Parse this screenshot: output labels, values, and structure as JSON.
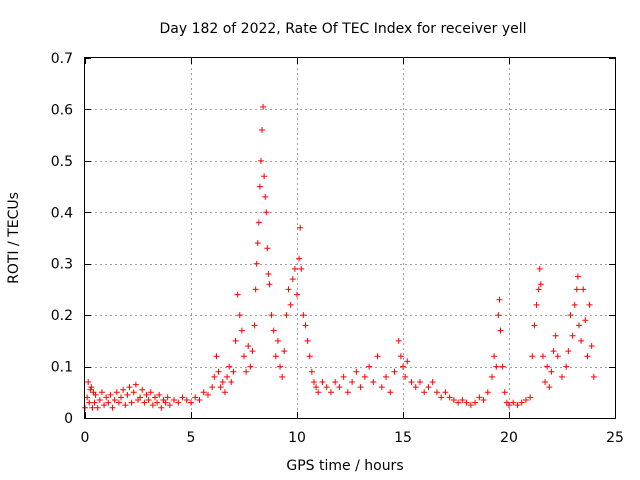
{
  "chart_data": {
    "type": "scatter",
    "title": "Day 182 of 2022, Rate Of TEC Index for receiver yell",
    "xlabel": "GPS time / hours",
    "ylabel": "ROTI / TECUs",
    "xlim": [
      0,
      25
    ],
    "ylim": [
      0,
      0.7
    ],
    "xticks": [
      0,
      5,
      10,
      15,
      20,
      25
    ],
    "xtick_labels": [
      "0",
      "5",
      "10",
      "15",
      "20",
      "25"
    ],
    "yticks": [
      0,
      0.1,
      0.2,
      0.3,
      0.4,
      0.5,
      0.6,
      0.7
    ],
    "ytick_labels": [
      "0",
      "0.1",
      "0.2",
      "0.3",
      "0.4",
      "0.5",
      "0.6",
      "0.7"
    ],
    "grid": true,
    "marker": "plus",
    "color": "#ff0000",
    "series": [
      {
        "name": "ROTI",
        "points": [
          [
            0.0,
            0.02
          ],
          [
            0.1,
            0.04
          ],
          [
            0.15,
            0.07
          ],
          [
            0.2,
            0.03
          ],
          [
            0.25,
            0.055
          ],
          [
            0.3,
            0.06
          ],
          [
            0.35,
            0.02
          ],
          [
            0.4,
            0.05
          ],
          [
            0.45,
            0.03
          ],
          [
            0.5,
            0.045
          ],
          [
            0.6,
            0.02
          ],
          [
            0.7,
            0.035
          ],
          [
            0.8,
            0.05
          ],
          [
            0.9,
            0.025
          ],
          [
            1.0,
            0.04
          ],
          [
            1.1,
            0.03
          ],
          [
            1.2,
            0.045
          ],
          [
            1.3,
            0.02
          ],
          [
            1.4,
            0.035
          ],
          [
            1.5,
            0.05
          ],
          [
            1.6,
            0.03
          ],
          [
            1.7,
            0.04
          ],
          [
            1.8,
            0.055
          ],
          [
            1.9,
            0.025
          ],
          [
            2.0,
            0.045
          ],
          [
            2.1,
            0.06
          ],
          [
            2.2,
            0.03
          ],
          [
            2.3,
            0.05
          ],
          [
            2.4,
            0.065
          ],
          [
            2.5,
            0.035
          ],
          [
            2.6,
            0.04
          ],
          [
            2.7,
            0.055
          ],
          [
            2.8,
            0.03
          ],
          [
            2.9,
            0.045
          ],
          [
            3.0,
            0.035
          ],
          [
            3.1,
            0.05
          ],
          [
            3.2,
            0.025
          ],
          [
            3.3,
            0.04
          ],
          [
            3.4,
            0.03
          ],
          [
            3.5,
            0.045
          ],
          [
            3.6,
            0.02
          ],
          [
            3.7,
            0.035
          ],
          [
            3.8,
            0.03
          ],
          [
            3.9,
            0.04
          ],
          [
            4.0,
            0.025
          ],
          [
            4.2,
            0.035
          ],
          [
            4.4,
            0.03
          ],
          [
            4.6,
            0.04
          ],
          [
            4.8,
            0.035
          ],
          [
            5.0,
            0.03
          ],
          [
            5.2,
            0.04
          ],
          [
            5.4,
            0.035
          ],
          [
            5.6,
            0.05
          ],
          [
            5.8,
            0.045
          ],
          [
            6.0,
            0.06
          ],
          [
            6.1,
            0.08
          ],
          [
            6.2,
            0.12
          ],
          [
            6.3,
            0.09
          ],
          [
            6.4,
            0.06
          ],
          [
            6.5,
            0.07
          ],
          [
            6.6,
            0.05
          ],
          [
            6.7,
            0.08
          ],
          [
            6.8,
            0.1
          ],
          [
            6.9,
            0.07
          ],
          [
            7.0,
            0.09
          ],
          [
            7.1,
            0.15
          ],
          [
            7.2,
            0.24
          ],
          [
            7.3,
            0.2
          ],
          [
            7.4,
            0.17
          ],
          [
            7.5,
            0.12
          ],
          [
            7.6,
            0.09
          ],
          [
            7.7,
            0.14
          ],
          [
            7.8,
            0.1
          ],
          [
            7.9,
            0.13
          ],
          [
            8.0,
            0.18
          ],
          [
            8.05,
            0.25
          ],
          [
            8.1,
            0.3
          ],
          [
            8.15,
            0.34
          ],
          [
            8.2,
            0.38
          ],
          [
            8.25,
            0.45
          ],
          [
            8.3,
            0.5
          ],
          [
            8.35,
            0.56
          ],
          [
            8.4,
            0.605
          ],
          [
            8.45,
            0.47
          ],
          [
            8.5,
            0.43
          ],
          [
            8.55,
            0.4
          ],
          [
            8.6,
            0.33
          ],
          [
            8.65,
            0.28
          ],
          [
            8.7,
            0.26
          ],
          [
            8.8,
            0.2
          ],
          [
            8.9,
            0.17
          ],
          [
            9.0,
            0.12
          ],
          [
            9.1,
            0.15
          ],
          [
            9.2,
            0.1
          ],
          [
            9.3,
            0.08
          ],
          [
            9.4,
            0.13
          ],
          [
            9.5,
            0.2
          ],
          [
            9.6,
            0.25
          ],
          [
            9.7,
            0.22
          ],
          [
            9.8,
            0.27
          ],
          [
            9.9,
            0.29
          ],
          [
            10.0,
            0.24
          ],
          [
            10.1,
            0.31
          ],
          [
            10.15,
            0.37
          ],
          [
            10.2,
            0.29
          ],
          [
            10.3,
            0.2
          ],
          [
            10.4,
            0.18
          ],
          [
            10.5,
            0.15
          ],
          [
            10.6,
            0.12
          ],
          [
            10.7,
            0.09
          ],
          [
            10.8,
            0.07
          ],
          [
            10.9,
            0.06
          ],
          [
            11.0,
            0.05
          ],
          [
            11.2,
            0.07
          ],
          [
            11.4,
            0.06
          ],
          [
            11.6,
            0.05
          ],
          [
            11.8,
            0.07
          ],
          [
            12.0,
            0.06
          ],
          [
            12.2,
            0.08
          ],
          [
            12.4,
            0.05
          ],
          [
            12.6,
            0.07
          ],
          [
            12.8,
            0.09
          ],
          [
            13.0,
            0.06
          ],
          [
            13.2,
            0.08
          ],
          [
            13.4,
            0.1
          ],
          [
            13.6,
            0.07
          ],
          [
            13.8,
            0.12
          ],
          [
            14.0,
            0.06
          ],
          [
            14.2,
            0.08
          ],
          [
            14.4,
            0.05
          ],
          [
            14.6,
            0.09
          ],
          [
            14.8,
            0.15
          ],
          [
            14.9,
            0.12
          ],
          [
            15.0,
            0.1
          ],
          [
            15.1,
            0.08
          ],
          [
            15.2,
            0.11
          ],
          [
            15.4,
            0.07
          ],
          [
            15.6,
            0.06
          ],
          [
            15.8,
            0.07
          ],
          [
            16.0,
            0.05
          ],
          [
            16.2,
            0.06
          ],
          [
            16.4,
            0.07
          ],
          [
            16.6,
            0.05
          ],
          [
            16.8,
            0.04
          ],
          [
            17.0,
            0.05
          ],
          [
            17.2,
            0.04
          ],
          [
            17.4,
            0.035
          ],
          [
            17.6,
            0.03
          ],
          [
            17.8,
            0.035
          ],
          [
            18.0,
            0.03
          ],
          [
            18.2,
            0.025
          ],
          [
            18.4,
            0.03
          ],
          [
            18.6,
            0.04
          ],
          [
            18.8,
            0.035
          ],
          [
            19.0,
            0.05
          ],
          [
            19.2,
            0.08
          ],
          [
            19.3,
            0.12
          ],
          [
            19.4,
            0.1
          ],
          [
            19.5,
            0.2
          ],
          [
            19.55,
            0.23
          ],
          [
            19.6,
            0.17
          ],
          [
            19.7,
            0.1
          ],
          [
            19.8,
            0.05
          ],
          [
            19.9,
            0.03
          ],
          [
            20.0,
            0.025
          ],
          [
            20.2,
            0.03
          ],
          [
            20.4,
            0.025
          ],
          [
            20.6,
            0.03
          ],
          [
            20.8,
            0.035
          ],
          [
            21.0,
            0.04
          ],
          [
            21.1,
            0.12
          ],
          [
            21.2,
            0.18
          ],
          [
            21.3,
            0.22
          ],
          [
            21.4,
            0.25
          ],
          [
            21.45,
            0.29
          ],
          [
            21.5,
            0.26
          ],
          [
            21.6,
            0.12
          ],
          [
            21.7,
            0.07
          ],
          [
            21.8,
            0.1
          ],
          [
            21.9,
            0.06
          ],
          [
            22.0,
            0.09
          ],
          [
            22.1,
            0.13
          ],
          [
            22.2,
            0.16
          ],
          [
            22.3,
            0.12
          ],
          [
            22.5,
            0.08
          ],
          [
            22.7,
            0.1
          ],
          [
            22.8,
            0.13
          ],
          [
            22.9,
            0.2
          ],
          [
            23.0,
            0.16
          ],
          [
            23.1,
            0.22
          ],
          [
            23.2,
            0.25
          ],
          [
            23.25,
            0.275
          ],
          [
            23.3,
            0.18
          ],
          [
            23.4,
            0.15
          ],
          [
            23.5,
            0.25
          ],
          [
            23.6,
            0.19
          ],
          [
            23.7,
            0.12
          ],
          [
            23.8,
            0.22
          ],
          [
            23.9,
            0.14
          ],
          [
            24.0,
            0.08
          ]
        ]
      }
    ]
  }
}
